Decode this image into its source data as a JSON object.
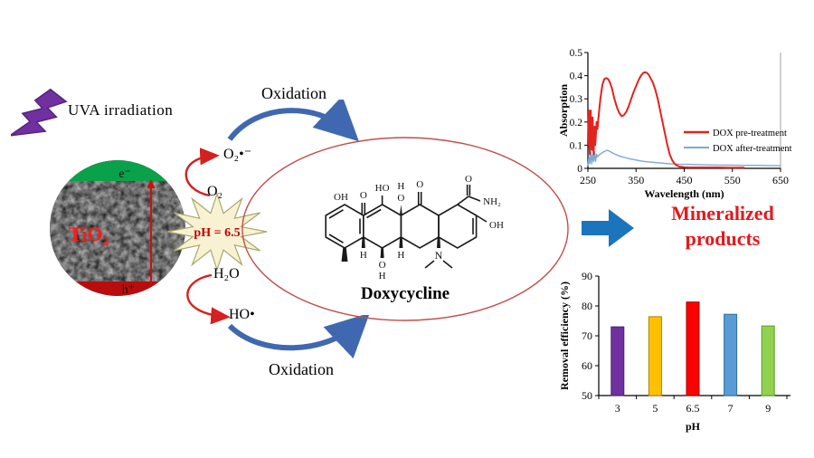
{
  "scene": {
    "uva_label": "UVA irradiation",
    "electron": "e⁻",
    "hole": "h⁺",
    "catalyst": "TiO",
    "catalyst_sub": "2",
    "ph_label": "pH = 6.5",
    "o2": "O₂",
    "superoxide": "O₂•⁻",
    "water": "H₂O",
    "hydroxyl": "HO•",
    "oxidation_top": "Oxidation",
    "oxidation_bottom": "Oxidation",
    "molecule_name": "Doxycycline",
    "product_label": "Mineralized products"
  },
  "molecule_labels": {
    "oh1": "OH",
    "o_keto1": "O",
    "ho": "HO",
    "h_top": "H",
    "o_top": "O",
    "o_keto2": "O",
    "o_amide": "O",
    "nh2": "NH₂",
    "oh_right": "OH",
    "h_a": "H",
    "o_bot": "O",
    "h_bot": "H",
    "h_b": "H",
    "n": "N"
  },
  "colors": {
    "lightning": "#7030a0",
    "electron_cap": "#0aa14b",
    "hole_cap": "#b90d0d",
    "catalyst_text": "#ff1a1a",
    "red_arrow": "#d42020",
    "blue_arrow": "#3f68b0",
    "big_arrow": "#1b75bc",
    "starburst_fill": "#f8f2d2",
    "starburst_edge": "#a8a86d",
    "ellipse_stroke": "#c0504d",
    "ph_text": "#c00000",
    "mineral_text": "#e3191c"
  },
  "chart_data": [
    {
      "type": "line",
      "title": "",
      "xlabel": "Wavelength (nm)",
      "ylabel": "Absorption",
      "xlim": [
        250,
        650
      ],
      "ylim": [
        0,
        0.5
      ],
      "xticks": [
        250,
        350,
        450,
        550,
        650
      ],
      "yticks": [
        0,
        0.1,
        0.2,
        0.3,
        0.4,
        0.5
      ],
      "legend_position": "right-center",
      "grid": false,
      "series": [
        {
          "name": "DOX pre-treatment",
          "color": "#e0241f",
          "width": 2,
          "x": [
            250,
            251,
            252,
            253,
            254,
            255,
            256,
            257,
            258,
            259,
            260,
            261,
            262,
            263,
            264,
            265,
            266,
            268,
            270,
            273,
            276,
            280,
            284,
            288,
            292,
            296,
            300,
            305,
            310,
            315,
            320,
            325,
            330,
            335,
            340,
            345,
            350,
            355,
            360,
            365,
            368,
            372,
            376,
            380,
            385,
            390,
            395,
            400,
            405,
            410,
            415,
            420,
            425,
            430,
            435,
            440,
            450,
            460,
            480,
            500,
            520,
            540,
            560,
            575
          ],
          "y": [
            0.1,
            0.18,
            0.25,
            0.1,
            0.06,
            0.2,
            0.25,
            0.12,
            0.08,
            0.16,
            0.22,
            0.1,
            0.06,
            0.14,
            0.18,
            0.1,
            0.12,
            0.2,
            0.17,
            0.24,
            0.3,
            0.36,
            0.385,
            0.39,
            0.385,
            0.37,
            0.345,
            0.3,
            0.265,
            0.24,
            0.225,
            0.23,
            0.245,
            0.27,
            0.3,
            0.33,
            0.355,
            0.38,
            0.4,
            0.412,
            0.415,
            0.413,
            0.405,
            0.39,
            0.37,
            0.34,
            0.3,
            0.25,
            0.2,
            0.15,
            0.1,
            0.06,
            0.035,
            0.02,
            0.012,
            0.008,
            0.005,
            0.004,
            0.004,
            0.004,
            0.004,
            0.003,
            0.003,
            0.003
          ]
        },
        {
          "name": "DOX after-treatment",
          "color": "#7da7d9",
          "width": 1.4,
          "x": [
            250,
            252,
            254,
            256,
            258,
            260,
            262,
            264,
            266,
            268,
            270,
            275,
            280,
            285,
            290,
            295,
            300,
            310,
            320,
            330,
            340,
            350,
            360,
            370,
            385,
            400,
            420,
            440,
            460,
            480,
            500,
            525,
            550,
            575,
            600,
            625,
            650
          ],
          "y": [
            0.01,
            0.05,
            0.02,
            0.07,
            0.02,
            0.06,
            0.03,
            0.07,
            0.03,
            0.06,
            0.05,
            0.06,
            0.068,
            0.074,
            0.078,
            0.074,
            0.068,
            0.058,
            0.05,
            0.045,
            0.04,
            0.036,
            0.032,
            0.029,
            0.026,
            0.023,
            0.02,
            0.018,
            0.017,
            0.016,
            0.015,
            0.014,
            0.014,
            0.013,
            0.013,
            0.012,
            0.012
          ]
        }
      ]
    },
    {
      "type": "bar",
      "title": "",
      "xlabel": "pH",
      "ylabel": "Removal efficiency (%)",
      "categories": [
        "3",
        "5",
        "6.5",
        "7",
        "9"
      ],
      "values": [
        73,
        76.4,
        81.3,
        77.2,
        73.3
      ],
      "colors": [
        "#7030a0",
        "#ffc000",
        "#ff0000",
        "#5b9bd5",
        "#92d050"
      ],
      "edge_colors": [
        "#4a2070",
        "#b08000",
        "#a00000",
        "#2e6da4",
        "#5a9e28"
      ],
      "ylim": [
        50,
        90
      ],
      "yticks": [
        50,
        60,
        70,
        80,
        90
      ],
      "grid": false
    }
  ]
}
